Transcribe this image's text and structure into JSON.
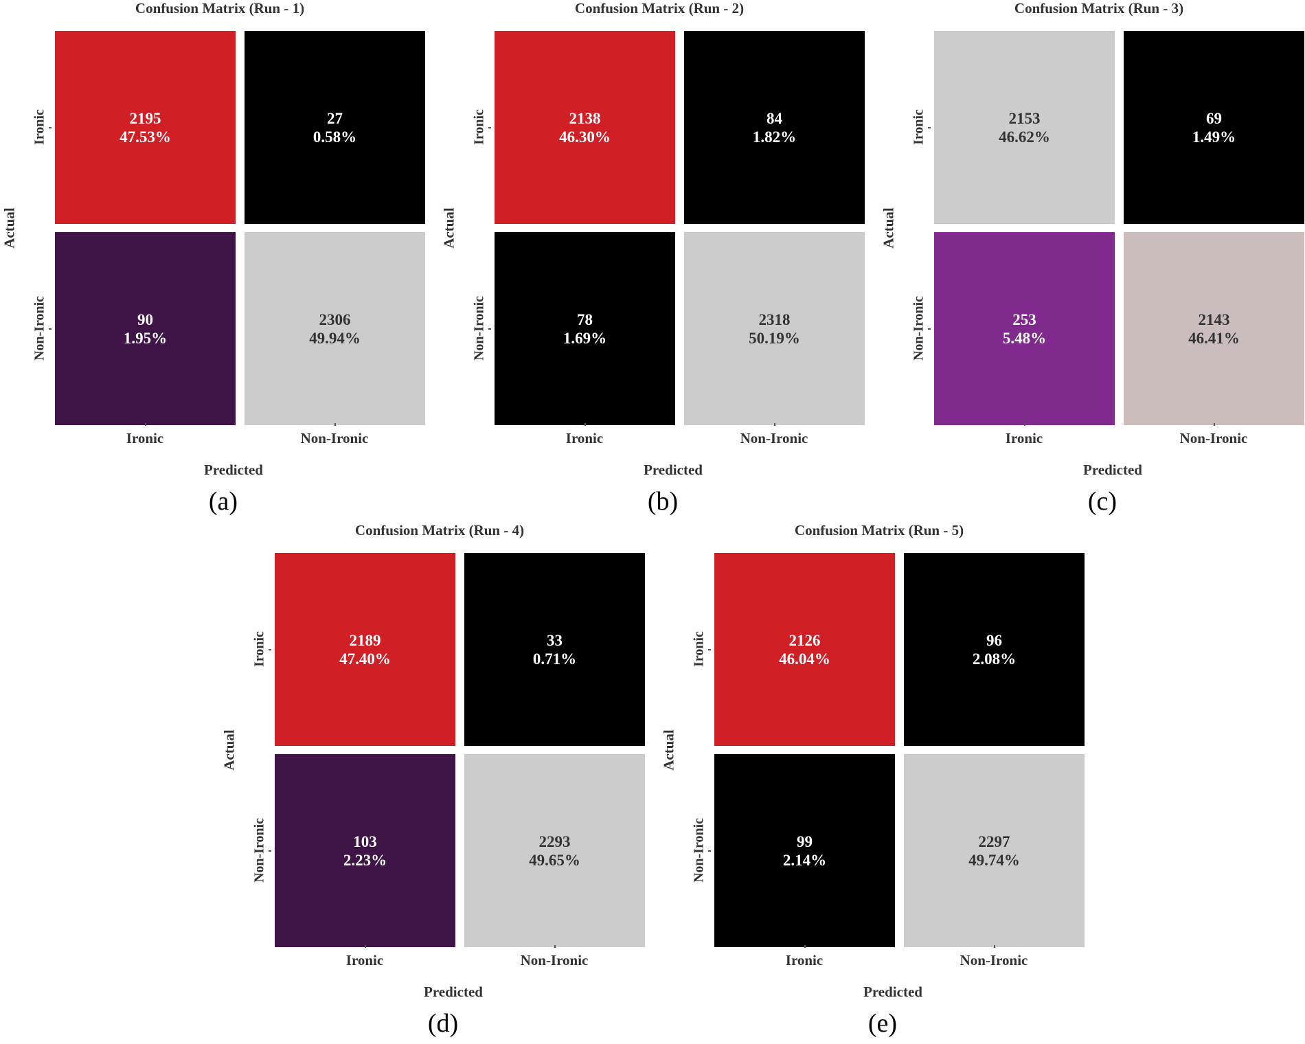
{
  "chart_data": [
    {
      "type": "heatmap",
      "title": "Confusion Matrix (Run - 1)",
      "caption": "(a)",
      "xlabel": "Predicted",
      "ylabel": "Actual",
      "x_categories": [
        "Ironic",
        "Non-Ironic"
      ],
      "y_categories": [
        "Ironic",
        "Non-Ironic"
      ],
      "counts": [
        [
          2195,
          27
        ],
        [
          90,
          2306
        ]
      ],
      "percentages": [
        [
          "47.53%",
          "0.58%"
        ],
        [
          "1.95%",
          "49.94%"
        ]
      ],
      "cell_colors": [
        [
          "#d11f26",
          "#000000"
        ],
        [
          "#3f1447",
          "#cccccc"
        ]
      ],
      "text_colors": [
        [
          "#ffffff",
          "#ffffff"
        ],
        [
          "#ffffff",
          "#333333"
        ]
      ]
    },
    {
      "type": "heatmap",
      "title": "Confusion Matrix (Run - 2)",
      "caption": "(b)",
      "xlabel": "Predicted",
      "ylabel": "Actual",
      "x_categories": [
        "Ironic",
        "Non-Ironic"
      ],
      "y_categories": [
        "Ironic",
        "Non-Ironic"
      ],
      "counts": [
        [
          2138,
          84
        ],
        [
          78,
          2318
        ]
      ],
      "percentages": [
        [
          "46.30%",
          "1.82%"
        ],
        [
          "1.69%",
          "50.19%"
        ]
      ],
      "cell_colors": [
        [
          "#d11f26",
          "#000000"
        ],
        [
          "#000000",
          "#cccccc"
        ]
      ],
      "text_colors": [
        [
          "#ffffff",
          "#ffffff"
        ],
        [
          "#ffffff",
          "#333333"
        ]
      ]
    },
    {
      "type": "heatmap",
      "title": "Confusion Matrix (Run - 3)",
      "caption": "(c)",
      "xlabel": "Predicted",
      "ylabel": "Actual",
      "x_categories": [
        "Ironic",
        "Non-Ironic"
      ],
      "y_categories": [
        "Ironic",
        "Non-Ironic"
      ],
      "counts": [
        [
          2153,
          69
        ],
        [
          253,
          2143
        ]
      ],
      "percentages": [
        [
          "46.62%",
          "1.49%"
        ],
        [
          "5.48%",
          "46.41%"
        ]
      ],
      "cell_colors": [
        [
          "#cccccc",
          "#000000"
        ],
        [
          "#7f2a8c",
          "#cbbdbc"
        ]
      ],
      "text_colors": [
        [
          "#333333",
          "#ffffff"
        ],
        [
          "#ffffff",
          "#333333"
        ]
      ]
    },
    {
      "type": "heatmap",
      "title": "Confusion Matrix (Run - 4)",
      "caption": "(d)",
      "xlabel": "Predicted",
      "ylabel": "Actual",
      "x_categories": [
        "Ironic",
        "Non-Ironic"
      ],
      "y_categories": [
        "Ironic",
        "Non-Ironic"
      ],
      "counts": [
        [
          2189,
          33
        ],
        [
          103,
          2293
        ]
      ],
      "percentages": [
        [
          "47.40%",
          "0.71%"
        ],
        [
          "2.23%",
          "49.65%"
        ]
      ],
      "cell_colors": [
        [
          "#d11f26",
          "#000000"
        ],
        [
          "#3f1447",
          "#cccccc"
        ]
      ],
      "text_colors": [
        [
          "#ffffff",
          "#ffffff"
        ],
        [
          "#ffffff",
          "#333333"
        ]
      ]
    },
    {
      "type": "heatmap",
      "title": "Confusion Matrix (Run - 5)",
      "caption": "(e)",
      "xlabel": "Predicted",
      "ylabel": "Actual",
      "x_categories": [
        "Ironic",
        "Non-Ironic"
      ],
      "y_categories": [
        "Ironic",
        "Non-Ironic"
      ],
      "counts": [
        [
          2126,
          96
        ],
        [
          99,
          2297
        ]
      ],
      "percentages": [
        [
          "46.04%",
          "2.08%"
        ],
        [
          "2.14%",
          "49.74%"
        ]
      ],
      "cell_colors": [
        [
          "#d11f26",
          "#000000"
        ],
        [
          "#000000",
          "#cccccc"
        ]
      ],
      "text_colors": [
        [
          "#ffffff",
          "#ffffff"
        ],
        [
          "#ffffff",
          "#333333"
        ]
      ]
    }
  ]
}
